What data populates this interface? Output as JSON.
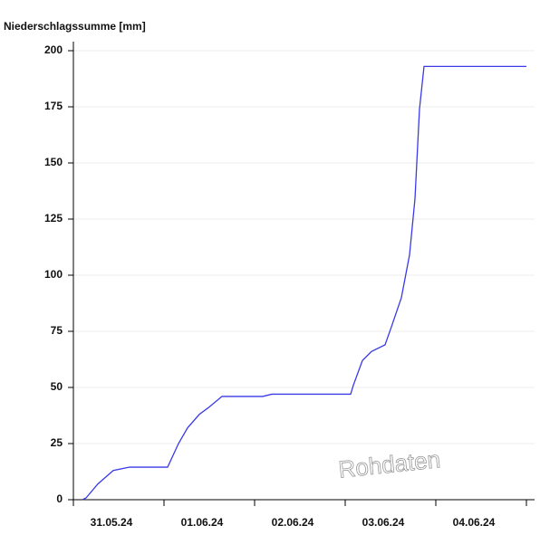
{
  "chart_data": {
    "type": "line",
    "title": "Niederschlagssumme [mm]",
    "annotation": "Rohdaten",
    "categories": [
      "31.05.24",
      "01.06.24",
      "02.06.24",
      "03.06.24",
      "04.06.24"
    ],
    "xlim": [
      0,
      5
    ],
    "xticks": [
      0,
      1,
      2,
      3,
      4,
      5
    ],
    "ylim": [
      0,
      200
    ],
    "yticks": [
      0,
      25,
      50,
      75,
      100,
      125,
      150,
      175,
      200
    ],
    "grid": true,
    "series": [
      {
        "color": "#3a3ae8",
        "x": [
          0.1,
          0.14,
          0.27,
          0.44,
          0.62,
          1.04,
          1.16,
          1.26,
          1.39,
          1.49,
          1.64,
          2.09,
          2.19,
          3.06,
          3.09,
          3.19,
          3.29,
          3.44,
          3.51,
          3.62,
          3.71,
          3.77,
          3.82,
          3.87,
          5.0
        ],
        "values": [
          0,
          0.8,
          7,
          13,
          14.5,
          14.5,
          25,
          32,
          38,
          41,
          46,
          46,
          47,
          47,
          51,
          62,
          66,
          69,
          77,
          90,
          109,
          134,
          174,
          193,
          193
        ]
      }
    ]
  }
}
